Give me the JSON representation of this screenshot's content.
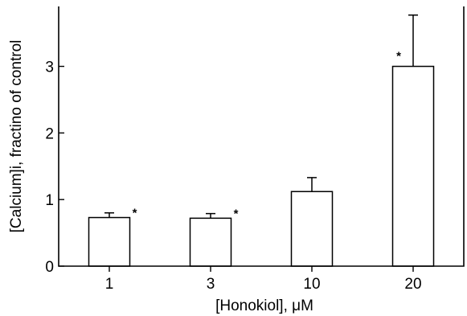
{
  "chart_data": {
    "type": "bar",
    "categories": [
      "1",
      "3",
      "10",
      "20"
    ],
    "values": [
      0.73,
      0.72,
      1.12,
      3.0
    ],
    "errors": [
      0.07,
      0.07,
      0.21,
      0.77
    ],
    "significance": [
      "*",
      "*",
      "",
      "*"
    ],
    "xlabel": "[Honokiol], μM",
    "ylabel": "[Calcium]i, fractino of control",
    "ylim": [
      0,
      3.9
    ],
    "yticks": [
      "0",
      "1",
      "2",
      "3"
    ],
    "grid": false
  }
}
